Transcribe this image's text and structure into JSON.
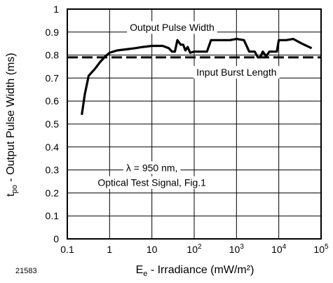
{
  "chart_data": {
    "type": "line",
    "figure_id": "21583",
    "xscale": "log",
    "xlim": [
      0.1,
      100000
    ],
    "ylim": [
      0,
      1
    ],
    "grid": true,
    "xlabel": {
      "main": "E",
      "sub": "e",
      "rest": " - Irradiance (mW/m²)"
    },
    "ylabel": {
      "main": "t",
      "sub": "po",
      "rest": " - Output Pulse Width (ms)"
    },
    "x_ticks": [
      {
        "value": 0.1,
        "base": "0.1",
        "exp": ""
      },
      {
        "value": 1,
        "base": "1",
        "exp": ""
      },
      {
        "value": 10,
        "base": "10",
        "exp": ""
      },
      {
        "value": 100,
        "base": "10",
        "exp": "2"
      },
      {
        "value": 1000,
        "base": "10",
        "exp": "3"
      },
      {
        "value": 10000,
        "base": "10",
        "exp": "4"
      },
      {
        "value": 100000,
        "base": "10",
        "exp": "5"
      }
    ],
    "y_ticks": [
      {
        "value": 0,
        "label": "0"
      },
      {
        "value": 0.1,
        "label": "0.1"
      },
      {
        "value": 0.2,
        "label": "0.2"
      },
      {
        "value": 0.3,
        "label": "0.3"
      },
      {
        "value": 0.4,
        "label": "0.4"
      },
      {
        "value": 0.5,
        "label": "0.5"
      },
      {
        "value": 0.6,
        "label": "0.6"
      },
      {
        "value": 0.7,
        "label": "0.7"
      },
      {
        "value": 0.8,
        "label": "0.8"
      },
      {
        "value": 0.9,
        "label": "0.9"
      },
      {
        "value": 1,
        "label": "1"
      }
    ],
    "series": [
      {
        "name": "Output Pulse Width",
        "style": "solid",
        "color": "#000000",
        "points": [
          [
            0.22,
            0.54
          ],
          [
            0.26,
            0.63
          ],
          [
            0.32,
            0.71
          ],
          [
            0.45,
            0.74
          ],
          [
            0.6,
            0.77
          ],
          [
            0.8,
            0.795
          ],
          [
            1.0,
            0.81
          ],
          [
            1.5,
            0.82
          ],
          [
            2.5,
            0.825
          ],
          [
            4,
            0.83
          ],
          [
            6,
            0.835
          ],
          [
            10,
            0.84
          ],
          [
            18,
            0.84
          ],
          [
            25,
            0.83
          ],
          [
            30,
            0.815
          ],
          [
            35,
            0.815
          ],
          [
            40,
            0.865
          ],
          [
            48,
            0.845
          ],
          [
            55,
            0.845
          ],
          [
            62,
            0.82
          ],
          [
            70,
            0.835
          ],
          [
            80,
            0.81
          ],
          [
            100,
            0.815
          ],
          [
            130,
            0.815
          ],
          [
            200,
            0.815
          ],
          [
            250,
            0.865
          ],
          [
            400,
            0.865
          ],
          [
            700,
            0.865
          ],
          [
            1000,
            0.87
          ],
          [
            1500,
            0.865
          ],
          [
            2000,
            0.815
          ],
          [
            2700,
            0.815
          ],
          [
            3200,
            0.79
          ],
          [
            3600,
            0.79
          ],
          [
            4200,
            0.815
          ],
          [
            5000,
            0.795
          ],
          [
            6000,
            0.815
          ],
          [
            9000,
            0.815
          ],
          [
            10000,
            0.865
          ],
          [
            15000,
            0.865
          ],
          [
            22000,
            0.87
          ],
          [
            35000,
            0.85
          ],
          [
            60000,
            0.83
          ]
        ]
      },
      {
        "name": "Input Burst Length",
        "style": "dashed",
        "color": "#000000",
        "points": [
          [
            0.1,
            0.79
          ],
          [
            100000,
            0.79
          ]
        ]
      }
    ],
    "annotations": [
      {
        "text": "Output Pulse Width",
        "x": 30,
        "y": 0.92
      },
      {
        "text": "Input Burst Length",
        "x": 1000,
        "y": 0.725
      },
      {
        "text": "λ = 950 nm,",
        "x": 10,
        "y": 0.31
      },
      {
        "text": "Optical Test Signal, Fig.1",
        "x": 10,
        "y": 0.245
      }
    ]
  }
}
